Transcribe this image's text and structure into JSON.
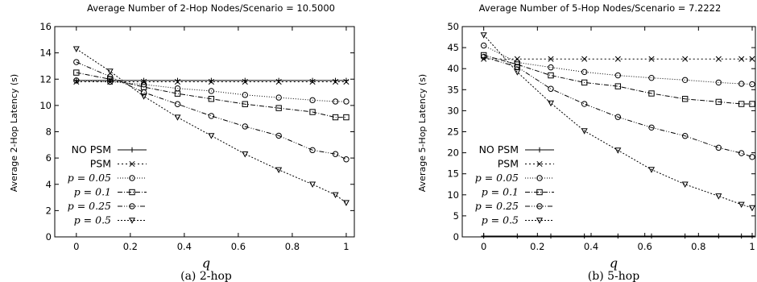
{
  "chart_data": [
    {
      "type": "line",
      "title": "Average Number of 2-Hop Nodes/Scenario = 10.5000",
      "xlabel": "q",
      "ylabel": "Average 2-Hop Latency (s)",
      "caption": "(a) 2-hop",
      "xlim": [
        -0.08,
        1.03
      ],
      "ylim": [
        0,
        16
      ],
      "xticks": [
        "0",
        "0.2",
        "0.4",
        "0.6",
        "0.8",
        "1"
      ],
      "yticks": [
        "0",
        "2",
        "4",
        "6",
        "8",
        "10",
        "12",
        "14",
        "16"
      ],
      "grid": false,
      "legend_position": "bottom-left",
      "x": [
        0,
        0.125,
        0.25,
        0.375,
        0.5,
        0.625,
        0.75,
        0.875,
        0.96,
        1.0
      ],
      "series": [
        {
          "name": "NO PSM",
          "marker": "plus",
          "dash": "",
          "values": [
            11.9,
            11.9,
            11.9,
            11.9,
            11.9,
            11.9,
            11.9,
            11.9,
            11.9,
            11.9
          ]
        },
        {
          "name": "PSM",
          "marker": "cross",
          "dash": "2 3",
          "values": [
            11.8,
            11.8,
            11.8,
            11.8,
            11.8,
            11.8,
            11.8,
            11.8,
            11.8,
            11.8
          ]
        },
        {
          "name": "p = 0.05",
          "marker": "circle",
          "dash": "1 2",
          "values": [
            11.9,
            11.8,
            11.6,
            11.3,
            11.1,
            10.8,
            10.6,
            10.4,
            10.3,
            10.3
          ]
        },
        {
          "name": "p = 0.1",
          "marker": "square",
          "dash": "6 2 1 2",
          "values": [
            12.5,
            12.0,
            11.4,
            10.9,
            10.5,
            10.1,
            9.8,
            9.5,
            9.1,
            9.1
          ]
        },
        {
          "name": "p = 0.25",
          "marker": "circle",
          "dash": "6 2 1 2 1 2",
          "values": [
            13.3,
            12.2,
            11.0,
            10.1,
            9.2,
            8.4,
            7.7,
            6.6,
            6.3,
            5.9
          ]
        },
        {
          "name": "p = 0.5",
          "marker": "triangle",
          "dash": "2 2",
          "values": [
            14.3,
            12.6,
            10.7,
            9.1,
            7.7,
            6.3,
            5.1,
            4.0,
            3.2,
            2.6
          ]
        }
      ]
    },
    {
      "type": "line",
      "title": "Average Number of 5-Hop Nodes/Scenario = 7.2222",
      "xlabel": "q",
      "ylabel": "Average 5-Hop Latency (s)",
      "caption": "(b) 5-hop",
      "xlim": [
        -0.08,
        1.03
      ],
      "ylim": [
        0,
        50
      ],
      "xticks": [
        "0",
        "0.2",
        "0.4",
        "0.6",
        "0.8",
        "1"
      ],
      "yticks": [
        "0",
        "5",
        "10",
        "15",
        "20",
        "25",
        "30",
        "35",
        "40",
        "45",
        "50"
      ],
      "grid": false,
      "legend_position": "bottom-left",
      "x": [
        0,
        0.125,
        0.25,
        0.375,
        0.5,
        0.625,
        0.75,
        0.875,
        0.96,
        1.0
      ],
      "series": [
        {
          "name": "NO PSM",
          "marker": "plus",
          "dash": "",
          "values": [
            0.2,
            0.2,
            0.2,
            0.2,
            0.2,
            0.2,
            0.2,
            0.2,
            0.2,
            0.2
          ]
        },
        {
          "name": "PSM",
          "marker": "cross",
          "dash": "2 3",
          "values": [
            42.3,
            42.3,
            42.3,
            42.3,
            42.3,
            42.3,
            42.3,
            42.3,
            42.3,
            42.3
          ]
        },
        {
          "name": "p = 0.05",
          "marker": "circle",
          "dash": "1 2",
          "values": [
            45.5,
            41.5,
            40.3,
            39.2,
            38.4,
            37.8,
            37.3,
            36.7,
            36.4,
            36.3
          ]
        },
        {
          "name": "p = 0.1",
          "marker": "square",
          "dash": "6 2 1 2",
          "values": [
            43.2,
            41.0,
            38.4,
            36.7,
            35.8,
            34.1,
            32.8,
            32.1,
            31.6,
            31.6
          ]
        },
        {
          "name": "p = 0.25",
          "marker": "circle",
          "dash": "6 2 1 2 1 2",
          "values": [
            42.8,
            40.4,
            35.2,
            31.6,
            28.5,
            26.0,
            24.0,
            21.2,
            19.9,
            19.0
          ]
        },
        {
          "name": "p = 0.5",
          "marker": "triangle",
          "dash": "2 2",
          "values": [
            48.0,
            39.2,
            31.8,
            25.2,
            20.6,
            16.0,
            12.5,
            9.7,
            7.7,
            6.9
          ]
        }
      ]
    }
  ]
}
